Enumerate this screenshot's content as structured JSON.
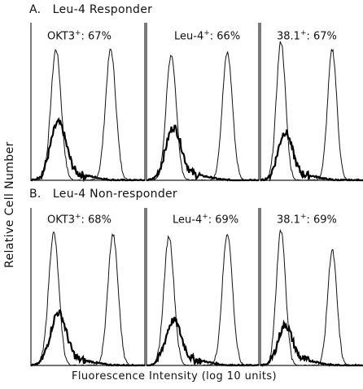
{
  "chart_data": {
    "type": "line",
    "ylabel": "Relative Cell Number",
    "xlabel": "Fluorescence Intensity (log 10 units)",
    "x_scale": "log",
    "grid": false,
    "legend": "none",
    "sections": [
      {
        "letter": "A.",
        "title": "Leu-4 Responder",
        "panels": [
          {
            "name": "OKT3",
            "superscript": "+",
            "value": ": 67%"
          },
          {
            "name": "Leu-4",
            "superscript": "+",
            "value": ": 66%"
          },
          {
            "name": "38.1",
            "superscript": "+",
            "value": ": 67%"
          }
        ]
      },
      {
        "letter": "B.",
        "title": "Leu-4 Non-responder",
        "panels": [
          {
            "name": "OKT3",
            "superscript": "+",
            "value": ": 68%"
          },
          {
            "name": "Leu-4",
            "superscript": "+",
            "value": ": 69%"
          },
          {
            "name": "38.1",
            "superscript": "+",
            "value": ": 69%"
          }
        ]
      }
    ],
    "histograms": [
      {
        "section": 0,
        "panel": 0,
        "peaks": [
          {
            "x": 0.22,
            "h": 0.83,
            "w": 0.045
          },
          {
            "x": 0.7,
            "h": 0.83,
            "w": 0.045
          }
        ],
        "control": {
          "x": 0.24,
          "h": 0.36,
          "w": 0.07
        }
      },
      {
        "section": 0,
        "panel": 1,
        "peaks": [
          {
            "x": 0.22,
            "h": 0.8,
            "w": 0.045
          },
          {
            "x": 0.72,
            "h": 0.81,
            "w": 0.045
          }
        ],
        "control": {
          "x": 0.24,
          "h": 0.33,
          "w": 0.07
        }
      },
      {
        "section": 0,
        "panel": 2,
        "peaks": [
          {
            "x": 0.2,
            "h": 0.88,
            "w": 0.045
          },
          {
            "x": 0.7,
            "h": 0.83,
            "w": 0.045
          }
        ],
        "control": {
          "x": 0.24,
          "h": 0.3,
          "w": 0.07
        }
      },
      {
        "section": 1,
        "panel": 0,
        "peaks": [
          {
            "x": 0.2,
            "h": 0.84,
            "w": 0.045
          },
          {
            "x": 0.72,
            "h": 0.83,
            "w": 0.045
          }
        ],
        "control": {
          "x": 0.24,
          "h": 0.33,
          "w": 0.07
        }
      },
      {
        "section": 1,
        "panel": 1,
        "peaks": [
          {
            "x": 0.2,
            "h": 0.82,
            "w": 0.045
          },
          {
            "x": 0.72,
            "h": 0.84,
            "w": 0.045
          }
        ],
        "control": {
          "x": 0.24,
          "h": 0.28,
          "w": 0.07
        }
      },
      {
        "section": 1,
        "panel": 2,
        "peaks": [
          {
            "x": 0.2,
            "h": 0.86,
            "w": 0.045
          },
          {
            "x": 0.7,
            "h": 0.73,
            "w": 0.045
          }
        ],
        "control": {
          "x": 0.24,
          "h": 0.25,
          "w": 0.07
        }
      }
    ]
  }
}
